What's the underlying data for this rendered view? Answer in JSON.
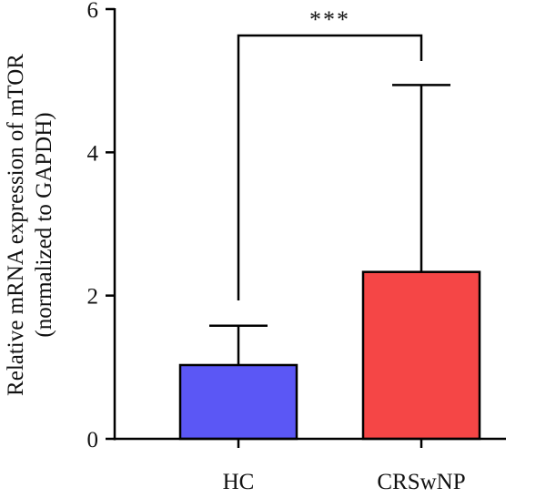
{
  "chart_data": {
    "type": "bar",
    "categories": [
      "HC",
      "CRSwNP"
    ],
    "values": [
      1.03,
      2.33
    ],
    "error_upper": [
      1.58,
      4.94
    ],
    "colors": [
      "#5b57f5",
      "#f54646"
    ],
    "ylabel_line1": "Relative mRNA expression of mTOR",
    "ylabel_line2": "(normalized to GAPDH)",
    "ylim": [
      0,
      6
    ],
    "yticks": [
      "0",
      "2",
      "4",
      "6"
    ],
    "ytick_values": [
      0,
      2,
      4,
      6
    ],
    "grid": false,
    "significance": {
      "between": [
        "HC",
        "CRSwNP"
      ],
      "label": "***"
    }
  }
}
